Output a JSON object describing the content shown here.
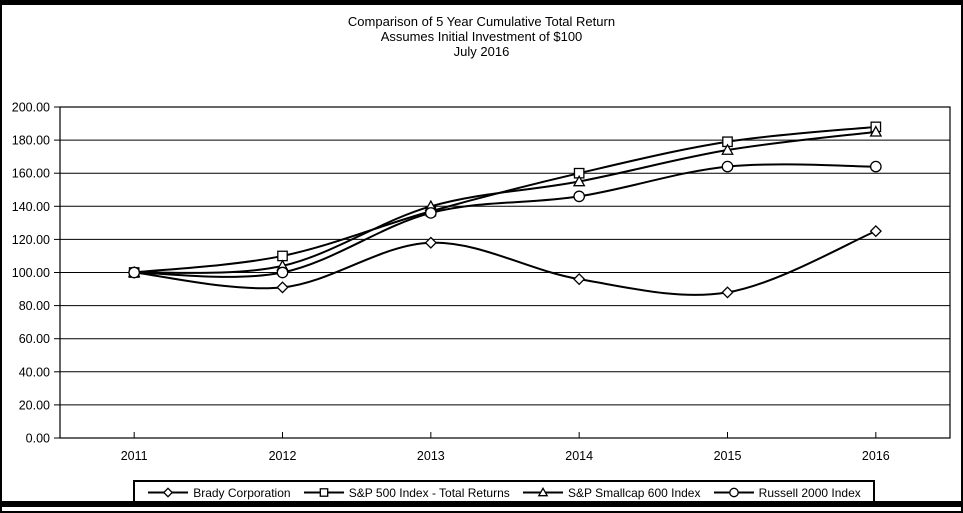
{
  "colors": {
    "line": "#000000",
    "background": "#ffffff",
    "marker_fill": "#ffffff"
  },
  "chart_data": {
    "type": "line",
    "title": "Comparison of 5 Year Cumulative Total Return",
    "subtitle": "Assumes Initial Investment of $100",
    "date_line": "July 2016",
    "categories": [
      "2011",
      "2012",
      "2013",
      "2014",
      "2015",
      "2016"
    ],
    "series": [
      {
        "name": "Brady Corporation",
        "marker": "diamond",
        "values": [
          100,
          91,
          118,
          96,
          88,
          125
        ]
      },
      {
        "name": "S&P 500 Index - Total Returns",
        "marker": "square",
        "values": [
          100,
          110,
          137,
          160,
          179,
          188
        ]
      },
      {
        "name": "S&P Smallcap 600 Index",
        "marker": "triangle",
        "values": [
          100,
          104,
          140,
          155,
          174,
          185
        ]
      },
      {
        "name": "Russell 2000 Index",
        "marker": "circle",
        "values": [
          100,
          100,
          136,
          146,
          164,
          164
        ]
      }
    ],
    "ylim": [
      0,
      200
    ],
    "ytick_step": 20,
    "ytick_labels": [
      "0.00",
      "20.00",
      "40.00",
      "60.00",
      "80.00",
      "100.00",
      "120.00",
      "140.00",
      "160.00",
      "180.00",
      "200.00"
    ],
    "grid": true,
    "smooth_lines": true,
    "legend_position": "bottom"
  }
}
